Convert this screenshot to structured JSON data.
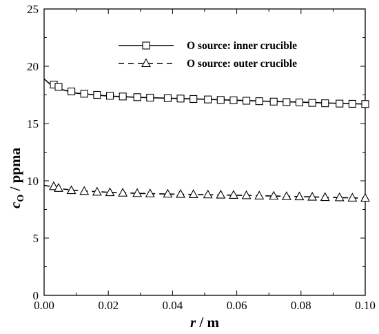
{
  "chart_data": {
    "type": "line",
    "title": "",
    "xlabel": {
      "italic": "r",
      "rest": " / m"
    },
    "ylabel": {
      "italic": "c",
      "sub": "O",
      "rest": " / ppma"
    },
    "xlim": [
      0,
      0.1
    ],
    "ylim": [
      0,
      25
    ],
    "x_ticks": [
      0,
      0.02,
      0.04,
      0.06,
      0.08,
      0.1
    ],
    "x_tick_labels": [
      "0.00",
      "0.02",
      "0.04",
      "0.06",
      "0.08",
      "0.10"
    ],
    "y_ticks": [
      0,
      5,
      10,
      15,
      20,
      25
    ],
    "y_tick_labels": [
      "0",
      "5",
      "10",
      "15",
      "20",
      "25"
    ],
    "legend_position": "top-right",
    "grid": false,
    "series": [
      {
        "name": "O source: inner crucible",
        "marker": "square",
        "line_style": "solid",
        "line": [
          [
            0,
            18.9
          ],
          [
            0.002,
            18.4
          ],
          [
            0.005,
            18.0
          ],
          [
            0.01,
            17.65
          ],
          [
            0.02,
            17.4
          ],
          [
            0.03,
            17.28
          ],
          [
            0.04,
            17.2
          ],
          [
            0.05,
            17.12
          ],
          [
            0.06,
            17.03
          ],
          [
            0.07,
            16.94
          ],
          [
            0.08,
            16.86
          ],
          [
            0.09,
            16.78
          ],
          [
            0.1,
            16.7
          ]
        ],
        "markers": [
          [
            0.003,
            18.4
          ],
          [
            0.0045,
            18.2
          ],
          [
            0.0085,
            17.8
          ],
          [
            0.0125,
            17.6
          ],
          [
            0.0165,
            17.5
          ],
          [
            0.0205,
            17.42
          ],
          [
            0.0245,
            17.36
          ],
          [
            0.029,
            17.3
          ],
          [
            0.033,
            17.26
          ],
          [
            0.0385,
            17.22
          ],
          [
            0.0425,
            17.18
          ],
          [
            0.0465,
            17.14
          ],
          [
            0.051,
            17.1
          ],
          [
            0.055,
            17.06
          ],
          [
            0.059,
            17.03
          ],
          [
            0.063,
            16.99
          ],
          [
            0.067,
            16.95
          ],
          [
            0.0715,
            16.91
          ],
          [
            0.0755,
            16.87
          ],
          [
            0.0795,
            16.84
          ],
          [
            0.0835,
            16.8
          ],
          [
            0.0875,
            16.77
          ],
          [
            0.092,
            16.74
          ],
          [
            0.096,
            16.72
          ],
          [
            0.1,
            16.7
          ]
        ]
      },
      {
        "name": "O source: outer crucible",
        "marker": "triangle",
        "line_style": "dashed",
        "line": [
          [
            0,
            9.6
          ],
          [
            0.003,
            9.45
          ],
          [
            0.006,
            9.28
          ],
          [
            0.01,
            9.15
          ],
          [
            0.02,
            9.0
          ],
          [
            0.03,
            8.9
          ],
          [
            0.04,
            8.84
          ],
          [
            0.05,
            8.79
          ],
          [
            0.06,
            8.74
          ],
          [
            0.07,
            8.68
          ],
          [
            0.08,
            8.62
          ],
          [
            0.09,
            8.55
          ],
          [
            0.1,
            8.48
          ]
        ],
        "markers": [
          [
            0.003,
            9.5
          ],
          [
            0.0045,
            9.35
          ],
          [
            0.0085,
            9.15
          ],
          [
            0.0125,
            9.08
          ],
          [
            0.0165,
            9.02
          ],
          [
            0.0205,
            8.97
          ],
          [
            0.0245,
            8.93
          ],
          [
            0.029,
            8.9
          ],
          [
            0.033,
            8.87
          ],
          [
            0.0385,
            8.84
          ],
          [
            0.0425,
            8.82
          ],
          [
            0.0465,
            8.8
          ],
          [
            0.051,
            8.78
          ],
          [
            0.055,
            8.76
          ],
          [
            0.059,
            8.74
          ],
          [
            0.063,
            8.71
          ],
          [
            0.067,
            8.68
          ],
          [
            0.0715,
            8.66
          ],
          [
            0.0755,
            8.63
          ],
          [
            0.0795,
            8.61
          ],
          [
            0.0835,
            8.58
          ],
          [
            0.0875,
            8.55
          ],
          [
            0.092,
            8.53
          ],
          [
            0.096,
            8.5
          ],
          [
            0.1,
            8.48
          ]
        ]
      }
    ]
  }
}
